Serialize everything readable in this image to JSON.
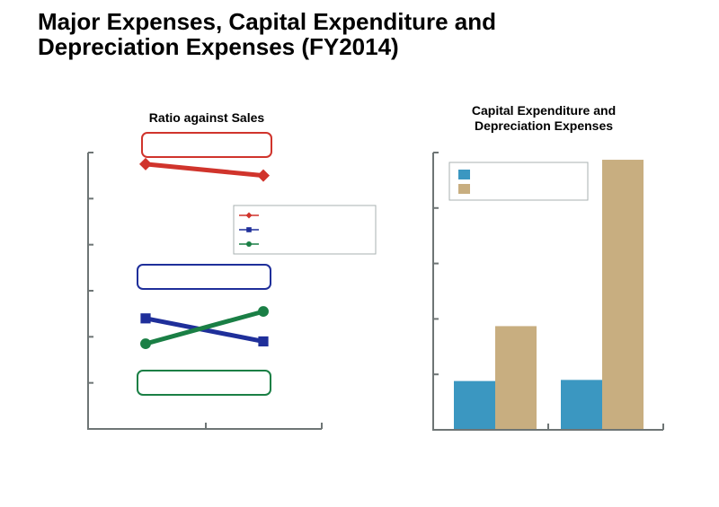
{
  "page": {
    "title": "Major Expenses, Capital Expenditure and Depreciation Expenses (FY2014)"
  },
  "colors": {
    "red": "#d0342c",
    "navy": "#1f2f9a",
    "green": "#1a7f45",
    "capex_blue": "#3b97c1",
    "depr_tan": "#c8ae80",
    "axis": "#6e7575"
  },
  "chart_data": [
    {
      "type": "line",
      "title": "Ratio against Sales",
      "categories": [
        "",
        ""
      ],
      "yticks": 6,
      "ylim": [
        0,
        6
      ],
      "legend": "top-right",
      "series": [
        {
          "color": "#d0342c",
          "marker": "diamond",
          "values": [
            5.75,
            5.5
          ]
        },
        {
          "color": "#1f2f9a",
          "marker": "square",
          "values": [
            2.4,
            1.9
          ]
        },
        {
          "color": "#1a7f45",
          "marker": "circle",
          "values": [
            1.85,
            2.55
          ]
        }
      ],
      "annotation_boxes": [
        "#d0342c",
        "#1f2f9a",
        "#1a7f45"
      ]
    },
    {
      "type": "bar",
      "title": "Capital Expenditure and Depreciation Expenses",
      "categories": [
        "",
        ""
      ],
      "yticks": 5,
      "ylim": [
        0,
        5
      ],
      "legend": "top-left",
      "series": [
        {
          "color": "#3b97c1",
          "values": [
            0.88,
            0.9
          ]
        },
        {
          "color": "#c8ae80",
          "values": [
            1.87,
            4.87
          ]
        }
      ]
    }
  ]
}
